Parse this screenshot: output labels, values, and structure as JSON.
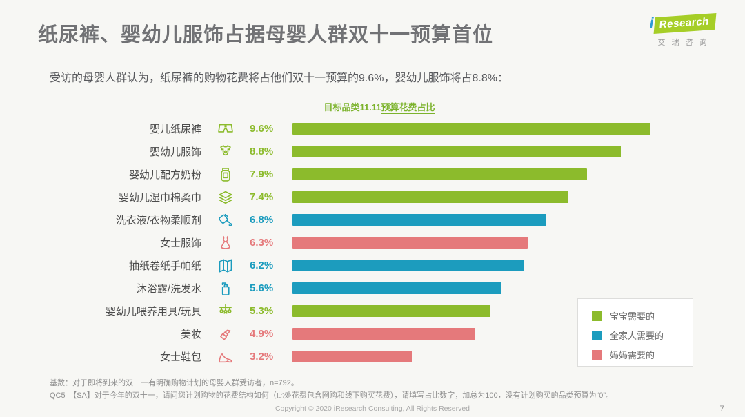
{
  "page": {
    "title": "纸尿裤、婴幼儿服饰占据母婴人群双十一预算首位",
    "subtitle": "受访的母婴人群认为，纸尿裤的购物花费将占他们双十一预算的9.6%，婴幼儿服饰将占8.8%：",
    "footnote_line1": "基数：对于即将到来的双十一有明确购物计划的母婴人群受访者，n=792。",
    "footnote_line2": "QC5　【SA】对于今年的双十一，请问您计划购物的花费结构如何（此处花费包含网购和线下购买花费），请填写占比数字，加总为100，没有计划购买的品类预算为“0”。",
    "copyright": "Copyright © 2020 iResearch Consulting, All Rights Reserved",
    "page_number": "7"
  },
  "logo": {
    "brand_i": "i",
    "brand_rest": "Research",
    "subtext": "艾瑞咨询",
    "green": "#a6ce27",
    "blue": "#2e9bd6"
  },
  "colors": {
    "baby": "#8cbb2c",
    "family": "#1c9cbe",
    "mom": "#e5797b"
  },
  "chart_data": {
    "type": "bar",
    "orientation": "horizontal",
    "title": "目标品类11.11预算花费占比",
    "title_plain": "目标品类11.11",
    "title_underlined": "预算花费占比",
    "unit": "%",
    "max_value": 9.6,
    "xlim": [
      0,
      9.6
    ],
    "grid": false,
    "legend_position": "bottom-right",
    "categories": [
      "婴儿纸尿裤",
      "婴幼儿服饰",
      "婴幼儿配方奶粉",
      "婴幼儿湿巾棉柔巾",
      "洗衣液/衣物柔顺剂",
      "女士服饰",
      "抽纸卷纸手帕纸",
      "沐浴露/洗发水",
      "婴幼儿喂养用具/玩具",
      "美妆",
      "女士鞋包"
    ],
    "values": [
      9.6,
      8.8,
      7.9,
      7.4,
      6.8,
      6.3,
      6.2,
      5.6,
      5.3,
      4.9,
      3.2
    ],
    "value_labels": [
      "9.6%",
      "8.8%",
      "7.9%",
      "7.4%",
      "6.8%",
      "6.3%",
      "6.2%",
      "5.6%",
      "5.3%",
      "4.9%",
      "3.2%"
    ],
    "groups": [
      "baby",
      "baby",
      "baby",
      "baby",
      "family",
      "mom",
      "family",
      "family",
      "baby",
      "mom",
      "mom"
    ],
    "icons": [
      "diaper",
      "onesie",
      "milk-jar",
      "wipes",
      "detergent",
      "dress",
      "tissue",
      "pump-bottle",
      "baby-mobile",
      "lipstick",
      "heel"
    ],
    "legend": [
      {
        "label": "宝宝需要的",
        "color_key": "baby"
      },
      {
        "label": "全家人需要的",
        "color_key": "family"
      },
      {
        "label": "妈妈需要的",
        "color_key": "mom"
      }
    ]
  }
}
